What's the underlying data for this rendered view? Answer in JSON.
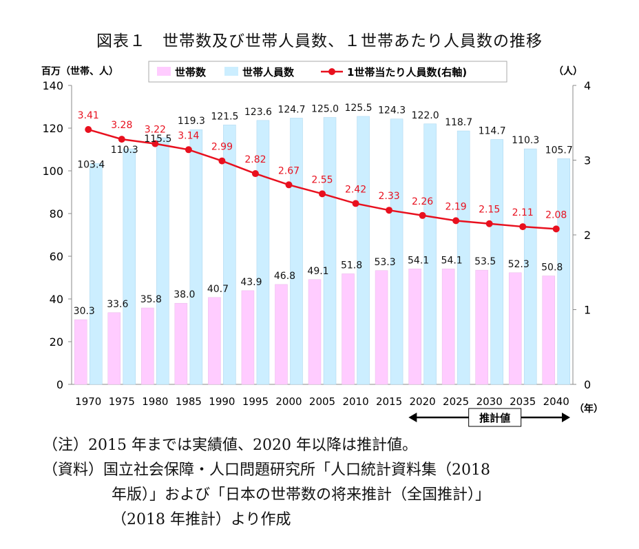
{
  "title": "図表１　世帯数及び世帯人員数、１世帯あたり人員数の推移",
  "chart_data": {
    "type": "bar",
    "categories": [
      "1970",
      "1975",
      "1980",
      "1985",
      "1990",
      "1995",
      "2000",
      "2005",
      "2010",
      "2015",
      "2020",
      "2025",
      "2030",
      "2035",
      "2040"
    ],
    "left_axis_label": "百万（世帯、人）",
    "right_axis_label": "（人）",
    "x_unit_label": "（年）",
    "left_ylim": [
      0,
      140
    ],
    "left_ticks": [
      "0",
      "20",
      "40",
      "60",
      "80",
      "100",
      "120",
      "140"
    ],
    "right_ylim": [
      0,
      4
    ],
    "right_ticks": [
      "0",
      "1",
      "2",
      "3",
      "4"
    ],
    "legend_position": "top",
    "grid": false,
    "series": [
      {
        "name": "世帯数",
        "kind": "bar",
        "axis": "left",
        "color": "#ffccff",
        "values": [
          30.3,
          33.6,
          35.8,
          38.0,
          40.7,
          43.9,
          46.8,
          49.1,
          51.8,
          53.3,
          54.1,
          54.1,
          53.5,
          52.3,
          50.8
        ],
        "labels": [
          "30.3",
          "33.6",
          "35.8",
          "38.0",
          "40.7",
          "43.9",
          "46.8",
          "49.1",
          "51.8",
          "53.3",
          "54.1",
          "54.1",
          "53.5",
          "52.3",
          "50.8"
        ]
      },
      {
        "name": "世帯人員数",
        "kind": "bar",
        "axis": "left",
        "color": "#cceeff",
        "values": [
          103.4,
          110.3,
          115.5,
          119.3,
          121.5,
          123.6,
          124.7,
          125.0,
          125.5,
          124.3,
          122.0,
          118.7,
          114.7,
          110.3,
          105.7
        ],
        "labels": [
          "103.4",
          "110.3",
          "115.5",
          "119.3",
          "121.5",
          "123.6",
          "124.7",
          "125.0",
          "125.5",
          "124.3",
          "122.0",
          "118.7",
          "114.7",
          "110.3",
          "105.7"
        ]
      },
      {
        "name": "1世帯当たり人員数(右軸)",
        "kind": "line",
        "axis": "right",
        "color": "#e8101e",
        "values": [
          3.41,
          3.28,
          3.22,
          3.14,
          2.99,
          2.82,
          2.67,
          2.55,
          2.42,
          2.33,
          2.26,
          2.19,
          2.15,
          2.11,
          2.08
        ],
        "labels": [
          "3.41",
          "3.28",
          "3.22",
          "3.14",
          "2.99",
          "2.82",
          "2.67",
          "2.55",
          "2.42",
          "2.33",
          "2.26",
          "2.19",
          "2.15",
          "2.11",
          "2.08"
        ]
      }
    ],
    "annotation": {
      "text": "推計値",
      "from": "2020",
      "to": "2040"
    }
  },
  "notes": [
    "（注）2015 年までは実績値、2020 年以降は推計値。",
    "（資料）国立社会保障・人口問題研究所「人口統計資料集（2018",
    "年版）」および「日本の世帯数の将来推計（全国推計）」",
    "（2018 年推計）より作成"
  ]
}
